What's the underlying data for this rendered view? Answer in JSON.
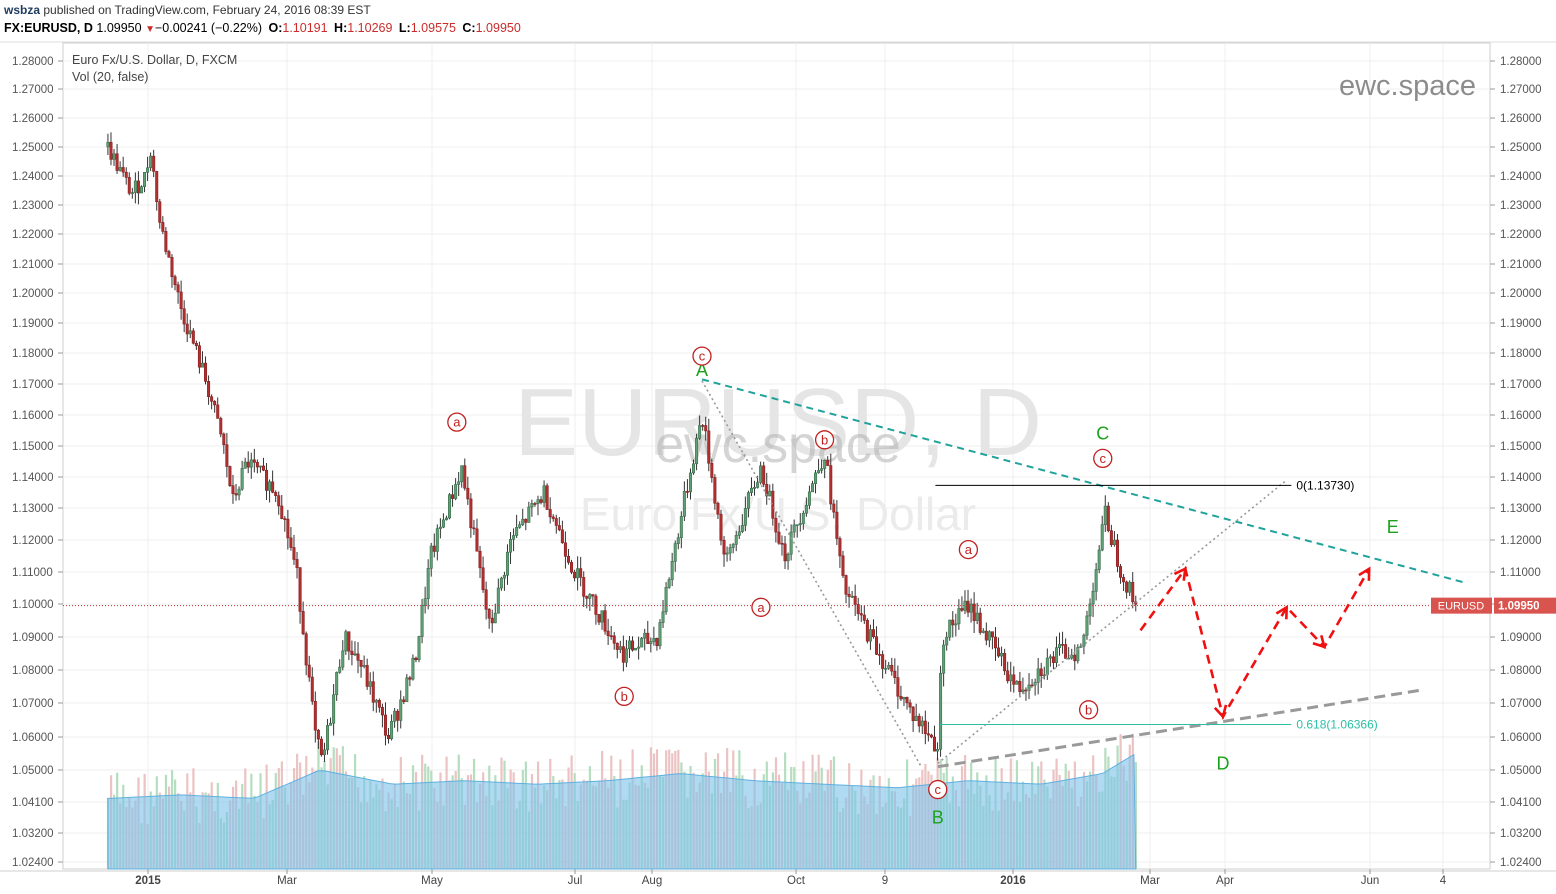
{
  "header": {
    "user": "wsbza",
    "published": "published on TradingView.com, February 24, 2016 08:39 EST",
    "symbol": "FX:EURUSD, D",
    "price": "1.09950",
    "change": "−0.00241 (−0.22%)",
    "o_label": "O:",
    "o": "1.10191",
    "h_label": "H:",
    "h": "1.10269",
    "l_label": "L:",
    "l": "1.09575",
    "c_label": "C:",
    "c": "1.09950"
  },
  "panel": {
    "title": "Euro Fx/U.S. Dollar, D, FXCM",
    "vol": "Vol (20, false)",
    "brand": "ewc.space",
    "watermark_symbol": "EURUSD, D",
    "watermark_name": "Euro Fx/U.S. Dollar",
    "watermark_brand": "ewc.space"
  },
  "chart_data": {
    "type": "candlestick",
    "symbol_tag": "EURUSD",
    "last_price": 1.0995,
    "last_price_label": "1.09950",
    "ylim": [
      1.022,
      1.287
    ],
    "y_ticks": [
      "1.28000",
      "1.27000",
      "1.26000",
      "1.25000",
      "1.24000",
      "1.23000",
      "1.22000",
      "1.21000",
      "1.20000",
      "1.19000",
      "1.18000",
      "1.17000",
      "1.16000",
      "1.15000",
      "1.14000",
      "1.13000",
      "1.12000",
      "1.11000",
      "1.10000",
      "1.09000",
      "1.08000",
      "1.07000",
      "1.06000",
      "1.05000",
      "1.04100",
      "1.03200",
      "1.02400"
    ],
    "x_ticks": [
      "2015",
      "Mar",
      "May",
      "Jul",
      "Aug",
      "Oct",
      "9",
      "2016",
      "Mar",
      "Apr",
      "Jun",
      "4"
    ],
    "price_path": [
      [
        "2014-12-15",
        1.25
      ],
      [
        "2014-12-25",
        1.234
      ],
      [
        "2014-12-31",
        1.24
      ],
      [
        "2015-01-02",
        1.25
      ],
      [
        "2015-01-06",
        1.224
      ],
      [
        "2015-01-15",
        1.195
      ],
      [
        "2015-01-26",
        1.17
      ],
      [
        "2015-02-02",
        1.15
      ],
      [
        "2015-02-06",
        1.132
      ],
      [
        "2015-02-12",
        1.145
      ],
      [
        "2015-02-25",
        1.135
      ],
      [
        "2015-03-05",
        1.11
      ],
      [
        "2015-03-13",
        1.06
      ],
      [
        "2015-03-16",
        1.052
      ],
      [
        "2015-03-25",
        1.09
      ],
      [
        "2015-04-01",
        1.082
      ],
      [
        "2015-04-13",
        1.06
      ],
      [
        "2015-04-24",
        1.082
      ],
      [
        "2015-05-01",
        1.115
      ],
      [
        "2015-05-14",
        1.143
      ],
      [
        "2015-05-26",
        1.092
      ],
      [
        "2015-06-04",
        1.12
      ],
      [
        "2015-06-18",
        1.135
      ],
      [
        "2015-07-01",
        1.11
      ],
      [
        "2015-07-21",
        1.085
      ],
      [
        "2015-08-05",
        1.09
      ],
      [
        "2015-08-24",
        1.16
      ],
      [
        "2015-09-03",
        1.112
      ],
      [
        "2015-09-18",
        1.143
      ],
      [
        "2015-09-28",
        1.115
      ],
      [
        "2015-10-15",
        1.148
      ],
      [
        "2015-10-23",
        1.105
      ],
      [
        "2015-11-05",
        1.088
      ],
      [
        "2015-11-20",
        1.068
      ],
      [
        "2015-12-02",
        1.057
      ],
      [
        "2015-12-04",
        1.09
      ],
      [
        "2015-12-15",
        1.1
      ],
      [
        "2016-01-05",
        1.074
      ],
      [
        "2016-01-22",
        1.085
      ],
      [
        "2016-02-01",
        1.086
      ],
      [
        "2016-02-11",
        1.128
      ],
      [
        "2016-02-18",
        1.11
      ],
      [
        "2016-02-24",
        1.0995
      ]
    ],
    "volume_avg_top": [
      [
        "2014-12-15",
        1.042
      ],
      [
        "2015-01-15",
        1.043
      ],
      [
        "2015-02-15",
        1.042
      ],
      [
        "2015-03-15",
        1.05
      ],
      [
        "2015-04-15",
        1.046
      ],
      [
        "2015-05-15",
        1.047
      ],
      [
        "2015-06-15",
        1.046
      ],
      [
        "2015-07-15",
        1.047
      ],
      [
        "2015-08-15",
        1.049
      ],
      [
        "2015-09-15",
        1.047
      ],
      [
        "2015-10-15",
        1.046
      ],
      [
        "2015-11-15",
        1.045
      ],
      [
        "2015-12-15",
        1.047
      ],
      [
        "2016-01-15",
        1.046
      ],
      [
        "2016-02-10",
        1.049
      ],
      [
        "2016-02-24",
        1.055
      ]
    ],
    "wave_labels": [
      {
        "text": "A",
        "style": "green",
        "date": "2015-08-24",
        "price": 1.1745
      },
      {
        "text": "c",
        "style": "circle",
        "date": "2015-08-24",
        "price": 1.179
      },
      {
        "text": "a",
        "style": "circle",
        "date": "2015-05-12",
        "price": 1.1577
      },
      {
        "text": "b",
        "style": "circle",
        "date": "2015-07-22",
        "price": 1.072
      },
      {
        "text": "a",
        "style": "circle",
        "date": "2015-09-18",
        "price": 1.099
      },
      {
        "text": "b",
        "style": "circle",
        "date": "2015-10-15",
        "price": 1.152
      },
      {
        "text": "c",
        "style": "circle",
        "date": "2015-12-02",
        "price": 1.0445
      },
      {
        "text": "B",
        "style": "green",
        "date": "2015-12-02",
        "price": 1.0365
      },
      {
        "text": "a",
        "style": "circle",
        "date": "2015-12-15",
        "price": 1.117
      },
      {
        "text": "b",
        "style": "circle",
        "date": "2016-02-04",
        "price": 1.068
      },
      {
        "text": "C",
        "style": "green",
        "date": "2016-02-10",
        "price": 1.154
      },
      {
        "text": "c",
        "style": "circle",
        "date": "2016-02-10",
        "price": 1.146
      },
      {
        "text": "D",
        "style": "green",
        "date": "2016-04-01",
        "price": 1.052
      },
      {
        "text": "E",
        "style": "green",
        "date": "2016-06-12",
        "price": 1.124
      }
    ],
    "fib_levels": [
      {
        "label": "0(1.13730)",
        "price": 1.1373,
        "from": "2015-12-01",
        "to": "2016-04-30",
        "color": "#000000"
      },
      {
        "label": "0.618(1.06366)",
        "price": 1.06366,
        "from": "2015-12-03",
        "to": "2016-04-30",
        "color": "#2bbfa5"
      }
    ],
    "trendlines": [
      {
        "name": "upper",
        "style": "dashed",
        "color": "#20a39a",
        "from": [
          "2015-08-24",
          1.1715
        ],
        "to": [
          "2016-07-12",
          1.1068
        ]
      },
      {
        "name": "lower",
        "style": "dashed",
        "color": "#999999",
        "from": [
          "2015-12-02",
          1.051
        ],
        "to": [
          "2016-06-25",
          1.074
        ]
      },
      {
        "name": "dotted-1",
        "style": "dotted",
        "color": "#999999",
        "from": [
          "2015-08-24",
          1.171
        ],
        "to": [
          "2015-11-25",
          1.051
        ]
      },
      {
        "name": "dotted-2",
        "style": "dotted",
        "color": "#999999",
        "from": [
          "2015-12-02",
          1.052
        ],
        "to": [
          "2016-04-28",
          1.139
        ]
      }
    ],
    "projection": [
      [
        "2016-02-26",
        1.092
      ],
      [
        "2016-03-16",
        1.111
      ],
      [
        "2016-04-01",
        1.066
      ],
      [
        "2016-04-28",
        1.099
      ],
      [
        "2016-05-14",
        1.087
      ],
      [
        "2016-06-02",
        1.111
      ]
    ]
  }
}
